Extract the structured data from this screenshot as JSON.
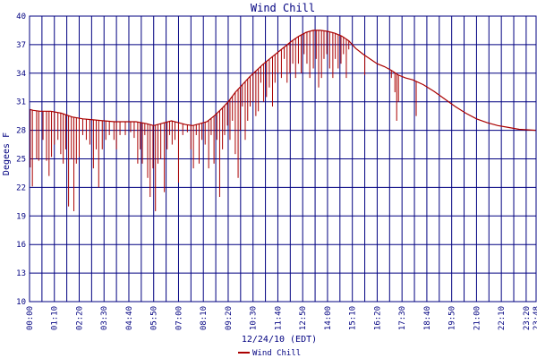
{
  "chart_data": {
    "type": "line",
    "title": "Wind Chill",
    "xlabel": "12/24/10 (EDT)",
    "ylabel": "Degees F",
    "ylim": [
      10,
      40
    ],
    "yticks": [
      "10",
      "13",
      "16",
      "19",
      "22",
      "25",
      "28",
      "31",
      "34",
      "37",
      "40"
    ],
    "xticks": [
      "00:00",
      "01:10",
      "02:20",
      "03:30",
      "04:40",
      "05:50",
      "07:00",
      "08:10",
      "09:20",
      "10:30",
      "11:40",
      "12:50",
      "14:00",
      "15:10",
      "16:20",
      "17:30",
      "18:40",
      "19:50",
      "21:00",
      "22:10",
      "23:20",
      "23:48"
    ],
    "xrange_minutes": [
      0,
      1428
    ],
    "grid": true,
    "legend": "bottom-center",
    "series": [
      {
        "name": "Wind Chill",
        "color": "#aa0000",
        "baseline": [
          [
            0,
            30.2
          ],
          [
            10,
            30.1
          ],
          [
            30,
            30.0
          ],
          [
            60,
            30.0
          ],
          [
            90,
            29.8
          ],
          [
            120,
            29.4
          ],
          [
            150,
            29.2
          ],
          [
            180,
            29.1
          ],
          [
            210,
            29.0
          ],
          [
            240,
            28.9
          ],
          [
            270,
            28.9
          ],
          [
            300,
            28.9
          ],
          [
            330,
            28.7
          ],
          [
            350,
            28.5
          ],
          [
            370,
            28.7
          ],
          [
            400,
            29.0
          ],
          [
            420,
            28.8
          ],
          [
            440,
            28.6
          ],
          [
            460,
            28.5
          ],
          [
            480,
            28.7
          ],
          [
            500,
            28.9
          ],
          [
            520,
            29.5
          ],
          [
            540,
            30.2
          ],
          [
            560,
            31.0
          ],
          [
            580,
            32.0
          ],
          [
            600,
            32.8
          ],
          [
            620,
            33.6
          ],
          [
            640,
            34.3
          ],
          [
            660,
            35.0
          ],
          [
            680,
            35.6
          ],
          [
            700,
            36.2
          ],
          [
            720,
            36.8
          ],
          [
            740,
            37.4
          ],
          [
            760,
            37.9
          ],
          [
            780,
            38.3
          ],
          [
            800,
            38.5
          ],
          [
            820,
            38.5
          ],
          [
            840,
            38.4
          ],
          [
            860,
            38.2
          ],
          [
            880,
            37.9
          ],
          [
            900,
            37.4
          ],
          [
            920,
            36.6
          ],
          [
            940,
            36.0
          ],
          [
            960,
            35.5
          ],
          [
            980,
            35.0
          ],
          [
            1000,
            34.7
          ],
          [
            1020,
            34.3
          ],
          [
            1040,
            33.8
          ],
          [
            1060,
            33.5
          ],
          [
            1080,
            33.3
          ],
          [
            1110,
            32.8
          ],
          [
            1140,
            32.1
          ],
          [
            1170,
            31.3
          ],
          [
            1200,
            30.5
          ],
          [
            1230,
            29.8
          ],
          [
            1260,
            29.2
          ],
          [
            1290,
            28.8
          ],
          [
            1320,
            28.5
          ],
          [
            1350,
            28.3
          ],
          [
            1380,
            28.1
          ],
          [
            1428,
            28.0
          ]
        ],
        "dips": [
          [
            2,
            24.1
          ],
          [
            8,
            22.1
          ],
          [
            20,
            25.0
          ],
          [
            26,
            24.8
          ],
          [
            38,
            27.0
          ],
          [
            48,
            24.8
          ],
          [
            55,
            23.2
          ],
          [
            62,
            25.2
          ],
          [
            70,
            26.5
          ],
          [
            80,
            27.0
          ],
          [
            88,
            25.5
          ],
          [
            95,
            24.5
          ],
          [
            102,
            26.0
          ],
          [
            110,
            20.0
          ],
          [
            118,
            25.0
          ],
          [
            125,
            19.5
          ],
          [
            132,
            24.5
          ],
          [
            140,
            25.2
          ],
          [
            150,
            27.5
          ],
          [
            160,
            27.0
          ],
          [
            170,
            26.5
          ],
          [
            180,
            24.0
          ],
          [
            188,
            26.0
          ],
          [
            195,
            22.0
          ],
          [
            205,
            26.0
          ],
          [
            215,
            27.0
          ],
          [
            225,
            27.5
          ],
          [
            238,
            27.0
          ],
          [
            245,
            26.0
          ],
          [
            255,
            27.5
          ],
          [
            270,
            27.5
          ],
          [
            285,
            27.8
          ],
          [
            295,
            27.2
          ],
          [
            305,
            24.5
          ],
          [
            312,
            26.0
          ],
          [
            318,
            24.5
          ],
          [
            325,
            27.5
          ],
          [
            333,
            23.0
          ],
          [
            340,
            21.0
          ],
          [
            348,
            24.0
          ],
          [
            355,
            19.5
          ],
          [
            362,
            24.5
          ],
          [
            370,
            25.0
          ],
          [
            380,
            21.5
          ],
          [
            388,
            26.0
          ],
          [
            395,
            27.5
          ],
          [
            402,
            26.5
          ],
          [
            410,
            27.0
          ],
          [
            420,
            22.5
          ],
          [
            432,
            27.5
          ],
          [
            445,
            27.8
          ],
          [
            455,
            26.0
          ],
          [
            462,
            24.0
          ],
          [
            470,
            27.5
          ],
          [
            478,
            24.5
          ],
          [
            486,
            27.0
          ],
          [
            495,
            26.5
          ],
          [
            505,
            24.0
          ],
          [
            512,
            27.5
          ],
          [
            520,
            24.5
          ],
          [
            528,
            27.0
          ],
          [
            536,
            21.0
          ],
          [
            544,
            26.0
          ],
          [
            550,
            27.5
          ],
          [
            558,
            28.5
          ],
          [
            565,
            27.0
          ],
          [
            572,
            29.0
          ],
          [
            580,
            25.5
          ],
          [
            588,
            23.0
          ],
          [
            594,
            28.0
          ],
          [
            600,
            30.5
          ],
          [
            608,
            27.0
          ],
          [
            615,
            29.0
          ],
          [
            622,
            30.5
          ],
          [
            630,
            31.0
          ],
          [
            638,
            29.5
          ],
          [
            645,
            30.0
          ],
          [
            652,
            33.0
          ],
          [
            660,
            31.0
          ],
          [
            668,
            31.5
          ],
          [
            676,
            32.5
          ],
          [
            685,
            30.5
          ],
          [
            692,
            33.0
          ],
          [
            700,
            34.0
          ],
          [
            710,
            33.5
          ],
          [
            718,
            35.5
          ],
          [
            726,
            33.0
          ],
          [
            734,
            34.0
          ],
          [
            742,
            35.0
          ],
          [
            750,
            33.5
          ],
          [
            758,
            35.0
          ],
          [
            766,
            34.0
          ],
          [
            774,
            36.0
          ],
          [
            782,
            35.0
          ],
          [
            790,
            33.5
          ],
          [
            800,
            34.5
          ],
          [
            808,
            35.5
          ],
          [
            815,
            32.5
          ],
          [
            823,
            33.5
          ],
          [
            830,
            35.5
          ],
          [
            838,
            36.0
          ],
          [
            846,
            34.5
          ],
          [
            855,
            33.5
          ],
          [
            862,
            35.5
          ],
          [
            870,
            34.5
          ],
          [
            878,
            35.0
          ],
          [
            885,
            36.0
          ],
          [
            893,
            33.5
          ],
          [
            900,
            36.5
          ],
          [
            945,
            33.8
          ],
          [
            1020,
            33.5
          ],
          [
            1030,
            32.0
          ],
          [
            1035,
            29.0
          ],
          [
            1040,
            31.0
          ],
          [
            1090,
            29.5
          ]
        ]
      }
    ]
  }
}
